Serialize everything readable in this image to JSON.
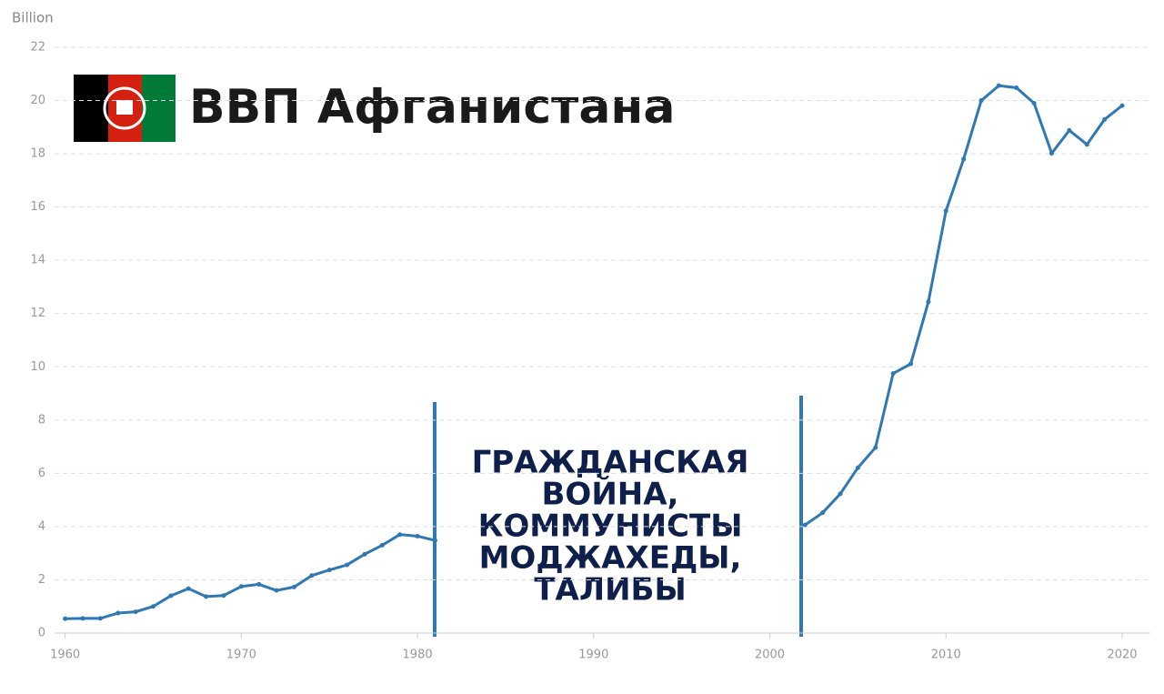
{
  "chart_data": {
    "type": "line",
    "title": "ВВП Афганистана",
    "y_label": "Billion",
    "annotation": [
      "ГРАЖДАНСКАЯ",
      "ВОЙНА,",
      "КОММУНИСТЫ",
      "МОДЖАХЕДЫ,",
      "ТАЛИБЫ"
    ],
    "x": [
      1960,
      1961,
      1962,
      1963,
      1964,
      1965,
      1966,
      1967,
      1968,
      1969,
      1970,
      1971,
      1972,
      1973,
      1974,
      1975,
      1976,
      1977,
      1978,
      1979,
      1980,
      1981,
      1982,
      1983,
      1984,
      1985,
      1986,
      1987,
      1988,
      1989,
      1990,
      1991,
      1992,
      1993,
      1994,
      1995,
      1996,
      1997,
      1998,
      1999,
      2000,
      2001,
      2002,
      2003,
      2004,
      2005,
      2006,
      2007,
      2008,
      2009,
      2010,
      2011,
      2012,
      2013,
      2014,
      2015,
      2016,
      2017,
      2018,
      2019,
      2020
    ],
    "series": [
      {
        "color": "#2f78b1",
        "values": [
          0.54,
          0.55,
          0.55,
          0.75,
          0.8,
          1.0,
          1.4,
          1.67,
          1.37,
          1.41,
          1.75,
          1.83,
          1.6,
          1.73,
          2.16,
          2.37,
          2.56,
          2.96,
          3.3,
          3.7,
          3.64,
          3.48,
          null,
          null,
          null,
          null,
          null,
          null,
          null,
          null,
          null,
          null,
          null,
          null,
          null,
          null,
          null,
          null,
          null,
          null,
          null,
          null,
          4.06,
          4.52,
          5.23,
          6.21,
          6.97,
          9.75,
          10.11,
          12.44,
          15.86,
          17.8,
          20.0,
          20.56,
          20.48,
          19.9,
          18.02,
          18.88,
          18.35,
          19.29,
          19.81
        ]
      }
    ],
    "xlim": [
      1959.4,
      2021.6
    ],
    "xticks": [
      1960,
      1970,
      1980,
      1990,
      2000,
      2010,
      2020
    ],
    "ylim": [
      0,
      22
    ],
    "yticks": [
      0,
      2,
      4,
      6,
      8,
      10,
      12,
      14,
      16,
      18,
      20,
      22
    ],
    "grid": true
  }
}
